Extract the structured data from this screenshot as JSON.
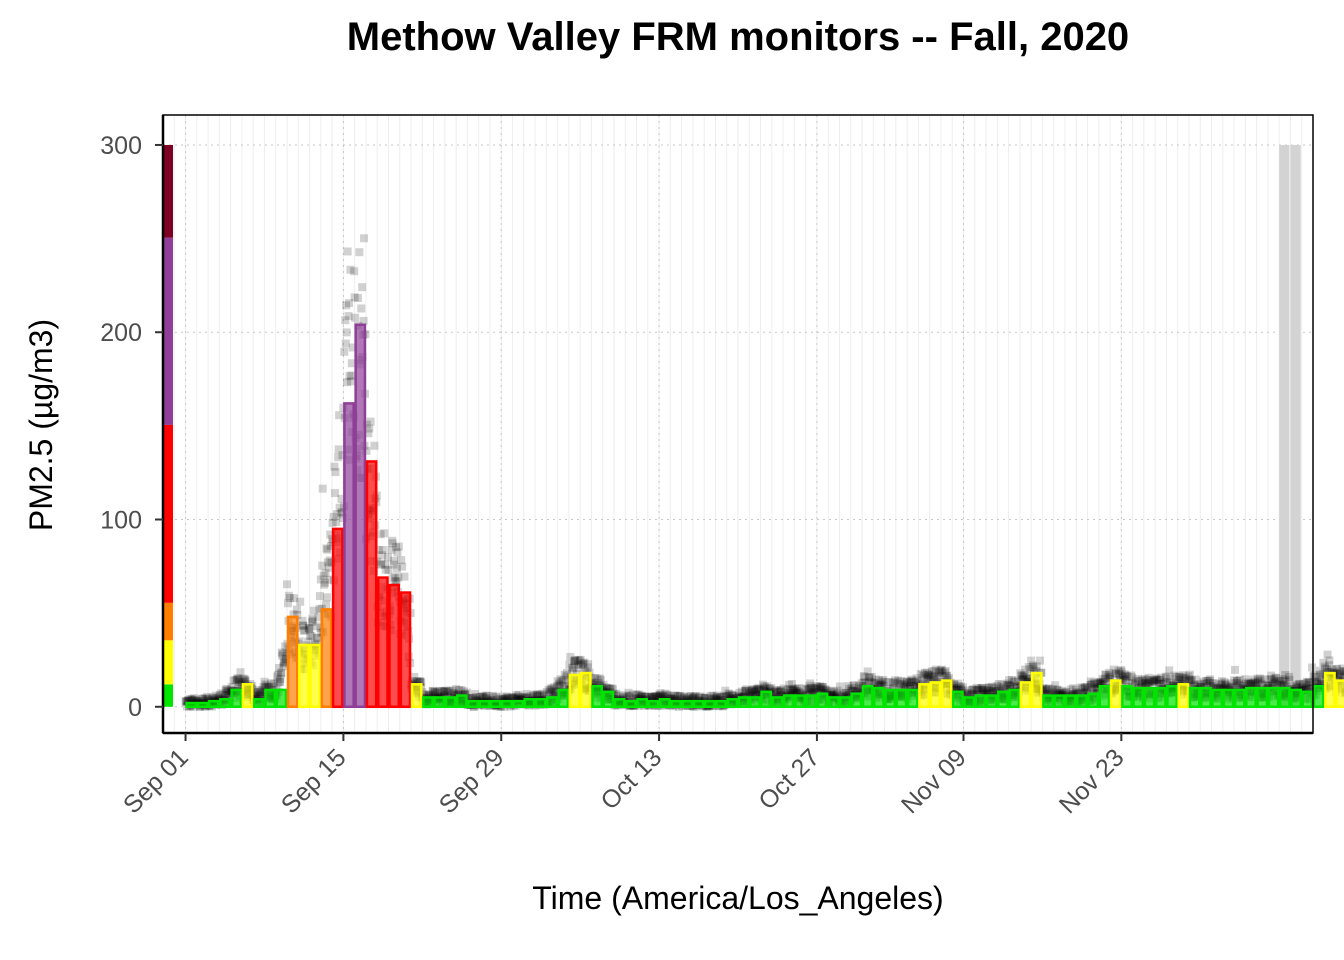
{
  "chart_data": {
    "type": "bar",
    "title": "Methow Valley FRM monitors -- Fall, 2020",
    "xlabel": "Time (America/Los_Angeles)",
    "ylabel": "PM2.5 (µg/m3)",
    "ylim": [
      -14,
      316
    ],
    "yticks": [
      0,
      100,
      200,
      300
    ],
    "x_range": [
      "2020-08-30",
      "2020-12-10"
    ],
    "x_ticks": [
      {
        "date": "2020-09-01",
        "label": "Sep 01"
      },
      {
        "date": "2020-09-15",
        "label": "Sep 15"
      },
      {
        "date": "2020-09-29",
        "label": "Sep 29"
      },
      {
        "date": "2020-10-13",
        "label": "Oct 13"
      },
      {
        "date": "2020-10-27",
        "label": "Oct 27"
      },
      {
        "date": "2020-11-09",
        "label": "Nov 09"
      },
      {
        "date": "2020-11-23",
        "label": "Nov 23"
      }
    ],
    "grid": true,
    "start_date": "2020-09-01",
    "daily_avg": [
      2,
      2,
      3,
      4,
      9,
      12,
      4,
      9,
      9,
      48,
      33,
      33,
      52,
      95,
      162,
      204,
      131,
      69,
      65,
      61,
      12,
      5,
      5,
      5,
      6,
      3,
      3,
      3,
      3,
      3,
      4,
      4,
      5,
      9,
      17,
      18,
      11,
      8,
      4,
      3,
      4,
      3,
      4,
      3,
      3,
      3,
      3,
      3,
      4,
      5,
      5,
      8,
      5,
      6,
      6,
      6,
      7,
      5,
      5,
      7,
      11,
      10,
      9,
      9,
      9,
      12,
      13,
      14,
      8,
      5,
      6,
      6,
      8,
      9,
      13,
      18,
      6,
      6,
      6,
      6,
      7,
      11,
      14,
      11,
      10,
      10,
      10,
      11,
      12,
      10,
      10,
      9,
      9,
      9,
      10,
      10,
      10,
      10,
      9,
      8,
      11,
      18,
      14,
      13,
      10,
      10
    ],
    "aqi_bands": [
      {
        "min": 0,
        "max": 12,
        "color": "#00E400"
      },
      {
        "min": 12,
        "max": 35.5,
        "color": "#FFFF00"
      },
      {
        "min": 35.5,
        "max": 55.5,
        "color": "#FF7E00"
      },
      {
        "min": 55.5,
        "max": 150.5,
        "color": "#FF0000"
      },
      {
        "min": 150.5,
        "max": 250.5,
        "color": "#8F3F97"
      },
      {
        "min": 250.5,
        "max": 300,
        "color": "#7E0023"
      }
    ],
    "shaded_range": [
      "2020-12-07",
      "2020-12-09"
    ]
  }
}
